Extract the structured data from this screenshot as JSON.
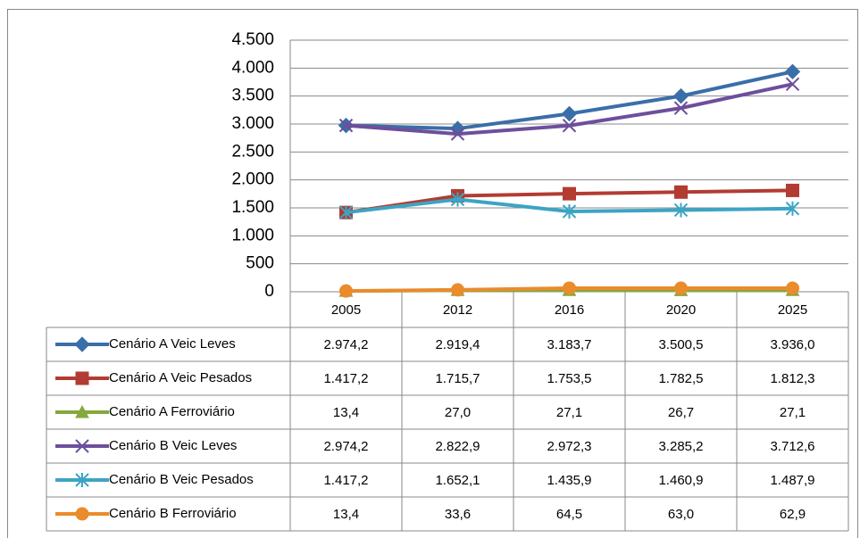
{
  "chart_data": {
    "type": "line",
    "categories": [
      "2005",
      "2012",
      "2016",
      "2020",
      "2025"
    ],
    "series": [
      {
        "name": "Cenário A Veic Leves",
        "color": "#3a6ea8",
        "marker": "diamond",
        "values": [
          2974.2,
          2919.4,
          3183.7,
          3500.5,
          3936.0
        ],
        "value_labels": [
          "2.974,2",
          "2.919,4",
          "3.183,7",
          "3.500,5",
          "3.936,0"
        ]
      },
      {
        "name": "Cenário A Veic Pesados",
        "color": "#b23c32",
        "marker": "square",
        "values": [
          1417.2,
          1715.7,
          1753.5,
          1782.5,
          1812.3
        ],
        "value_labels": [
          "1.417,2",
          "1.715,7",
          "1.753,5",
          "1.782,5",
          "1.812,3"
        ]
      },
      {
        "name": "Cenário A Ferroviário",
        "color": "#84a83c",
        "marker": "triangle",
        "values": [
          13.4,
          27.0,
          27.1,
          26.7,
          27.1
        ],
        "value_labels": [
          "13,4",
          "27,0",
          "27,1",
          "26,7",
          "27,1"
        ]
      },
      {
        "name": "Cenário B Veic Leves",
        "color": "#6d4f9c",
        "marker": "x",
        "values": [
          2974.2,
          2822.9,
          2972.3,
          3285.2,
          3712.6
        ],
        "value_labels": [
          "2.974,2",
          "2.822,9",
          "2.972,3",
          "3.285,2",
          "3.712,6"
        ]
      },
      {
        "name": "Cenário B Veic Pesados",
        "color": "#3ca4c4",
        "marker": "star",
        "values": [
          1417.2,
          1652.1,
          1435.9,
          1460.9,
          1487.9
        ],
        "value_labels": [
          "1.417,2",
          "1.652,1",
          "1.435,9",
          "1.460,9",
          "1.487,9"
        ]
      },
      {
        "name": "Cenário B Ferroviário",
        "color": "#ea8b2c",
        "marker": "circle",
        "values": [
          13.4,
          33.6,
          64.5,
          63.0,
          62.9
        ],
        "value_labels": [
          "13,4",
          "33,6",
          "64,5",
          "63,0",
          "62,9"
        ]
      }
    ],
    "ylim": [
      0,
      4500
    ],
    "yticks": [
      0,
      500,
      {
        "value": 1000,
        "label": "1.000"
      },
      {
        "value": 1500,
        "label": "1.500"
      },
      {
        "value": 2000,
        "label": "2.000"
      },
      {
        "value": 2500,
        "label": "2.500"
      },
      {
        "value": 3000,
        "label": "3.000"
      },
      {
        "value": 3500,
        "label": "3.500"
      },
      {
        "value": 4000,
        "label": "4.000"
      },
      {
        "value": 4500,
        "label": "4.500"
      }
    ],
    "grid": true
  }
}
